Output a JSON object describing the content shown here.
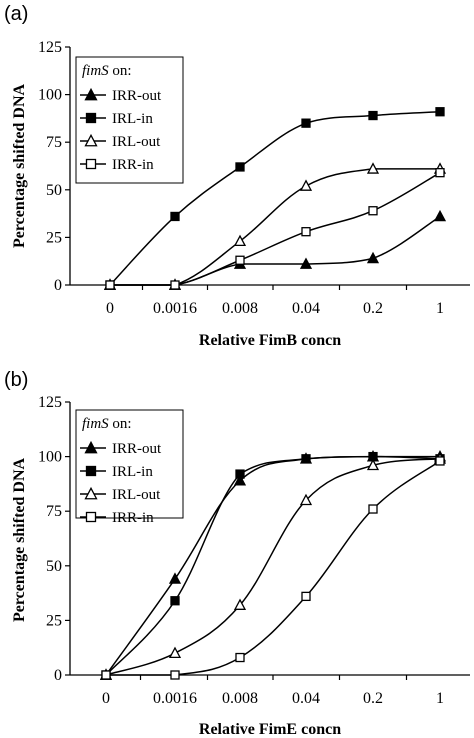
{
  "chart_data": [
    {
      "type": "line",
      "panel_label": "(a)",
      "categories": [
        "0",
        "0.0016",
        "0.008",
        "0.04",
        "0.2",
        "1"
      ],
      "xlabel": "Relative FimB concn",
      "ylabel": "Percentage shifted DNA",
      "ylim": [
        0,
        125
      ],
      "yticks": [
        "0",
        "25",
        "50",
        "75",
        "100",
        "125"
      ],
      "grid": false,
      "legend_position": "top-left",
      "legend_title_italic": "fimS",
      "legend_title_rest": " on:",
      "series": [
        {
          "name": "IRR-out",
          "marker": "filled-triangle",
          "values": [
            0,
            0,
            11,
            11,
            14,
            36
          ]
        },
        {
          "name": "IRL-in",
          "marker": "filled-square",
          "values": [
            0,
            36,
            62,
            85,
            89,
            91
          ]
        },
        {
          "name": "IRL-out",
          "marker": "open-triangle",
          "values": [
            0,
            0,
            23,
            52,
            61,
            61
          ]
        },
        {
          "name": "IRR-in",
          "marker": "open-square",
          "values": [
            0,
            0,
            13,
            28,
            39,
            59
          ]
        }
      ]
    },
    {
      "type": "line",
      "panel_label": "(b)",
      "categories": [
        "0",
        "0.0016",
        "0.008",
        "0.04",
        "0.2",
        "1"
      ],
      "xlabel": "Relative FimE concn",
      "ylabel": "Percentage shifted DNA",
      "ylim": [
        0,
        125
      ],
      "yticks": [
        "0",
        "25",
        "50",
        "75",
        "100",
        "125"
      ],
      "grid": false,
      "legend_position": "top-left",
      "legend_title_italic": "fimS",
      "legend_title_rest": " on:",
      "series": [
        {
          "name": "IRR-out",
          "marker": "filled-triangle",
          "values": [
            0,
            44,
            89,
            99,
            100,
            100
          ]
        },
        {
          "name": "IRL-in",
          "marker": "filled-square",
          "values": [
            0,
            34,
            92,
            99,
            100,
            99
          ]
        },
        {
          "name": "IRL-out",
          "marker": "open-triangle",
          "values": [
            0,
            10,
            32,
            80,
            96,
            99
          ]
        },
        {
          "name": "IRR-in",
          "marker": "open-square",
          "values": [
            0,
            0,
            8,
            36,
            76,
            98
          ]
        }
      ]
    }
  ]
}
